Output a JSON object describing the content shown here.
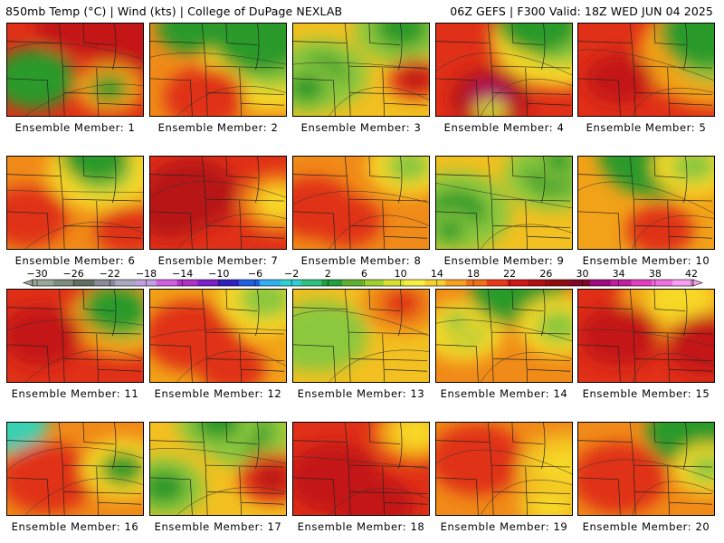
{
  "header": {
    "left": "850mb Temp (°C) | Wind (kts) | College of DuPage NEXLAB",
    "right": "06Z GEFS | F300 Valid: 18Z WED JUN 04 2025"
  },
  "member_label_prefix": "Ensemble Member: ",
  "members": [
    {
      "num": 1,
      "base": "#e03018",
      "cool": [
        "#f2a218",
        "#2a9a2a"
      ],
      "hot": [
        "#c41616"
      ],
      "blobs": [
        [
          0.95,
          0.05,
          0.45,
          0
        ],
        [
          0.5,
          0.0,
          0.3,
          0
        ],
        [
          0.2,
          0.6,
          0.3,
          2
        ],
        [
          0.75,
          0.7,
          0.25,
          1
        ]
      ]
    },
    {
      "num": 2,
      "base": "#f08a18",
      "cool": [
        "#f7d826",
        "#8cc83c",
        "#2a9a2a"
      ],
      "hot": [
        "#e03018"
      ],
      "blobs": [
        [
          0.9,
          0.4,
          0.5,
          1
        ],
        [
          0.8,
          0.15,
          0.35,
          2
        ],
        [
          0.3,
          0.05,
          0.25,
          2
        ],
        [
          0.4,
          0.8,
          0.3,
          0
        ]
      ]
    },
    {
      "num": 3,
      "base": "#f2c020",
      "cool": [
        "#8cc83c",
        "#2a9a2a"
      ],
      "hot": [
        "#e03018",
        "#b81414"
      ],
      "blobs": [
        [
          0.2,
          0.55,
          0.35,
          1
        ],
        [
          0.1,
          0.7,
          0.25,
          1
        ],
        [
          0.8,
          0.05,
          0.35,
          1
        ],
        [
          0.9,
          0.6,
          0.2,
          0
        ]
      ]
    },
    {
      "num": 4,
      "base": "#e03018",
      "cool": [
        "#f7d826",
        "#8cc83c",
        "#2a9a2a"
      ],
      "hot": [
        "#b81414",
        "#a0106a"
      ],
      "blobs": [
        [
          0.9,
          0.15,
          0.5,
          1
        ],
        [
          0.75,
          0.0,
          0.3,
          2
        ],
        [
          0.4,
          0.8,
          0.3,
          0
        ],
        [
          0.4,
          0.95,
          0.12,
          1
        ]
      ]
    },
    {
      "num": 5,
      "base": "#e03018",
      "cool": [
        "#f2a218",
        "#8cc83c",
        "#2a9a2a"
      ],
      "hot": [
        "#c41616"
      ],
      "blobs": [
        [
          1.0,
          0.3,
          0.55,
          1
        ],
        [
          0.95,
          0.1,
          0.35,
          2
        ],
        [
          0.3,
          0.6,
          0.25,
          0
        ]
      ]
    },
    {
      "num": 6,
      "base": "#f08a18",
      "cool": [
        "#f7d826",
        "#8cc83c",
        "#2a9a2a"
      ],
      "hot": [
        "#e03018"
      ],
      "blobs": [
        [
          0.7,
          0.15,
          0.4,
          1
        ],
        [
          0.65,
          0.0,
          0.25,
          2
        ],
        [
          0.15,
          0.65,
          0.3,
          0
        ],
        [
          0.9,
          0.8,
          0.25,
          0
        ]
      ]
    },
    {
      "num": 7,
      "base": "#e03018",
      "cool": [
        "#f08a18",
        "#f7d826"
      ],
      "hot": [
        "#b81414"
      ],
      "blobs": [
        [
          0.3,
          0.4,
          0.35,
          0
        ],
        [
          0.15,
          0.55,
          0.3,
          0
        ],
        [
          0.95,
          0.5,
          0.3,
          1
        ]
      ]
    },
    {
      "num": 8,
      "base": "#f08a18",
      "cool": [
        "#f7d826",
        "#8cc83c"
      ],
      "hot": [
        "#e03018"
      ],
      "blobs": [
        [
          0.15,
          0.55,
          0.3,
          0
        ],
        [
          0.4,
          0.7,
          0.25,
          0
        ],
        [
          0.85,
          0.1,
          0.3,
          1
        ]
      ]
    },
    {
      "num": 9,
      "base": "#f2c020",
      "cool": [
        "#8cc83c",
        "#2a9a2a"
      ],
      "hot": [
        "#e03018",
        "#b81414"
      ],
      "blobs": [
        [
          0.15,
          0.6,
          0.4,
          1
        ],
        [
          0.1,
          0.8,
          0.2,
          1
        ],
        [
          0.85,
          0.2,
          0.35,
          1
        ],
        [
          0.9,
          0.05,
          0.2,
          1
        ]
      ]
    },
    {
      "num": 10,
      "base": "#f2a218",
      "cool": [
        "#f7d826",
        "#8cc83c",
        "#2a9a2a"
      ],
      "hot": [
        "#e03018"
      ],
      "blobs": [
        [
          0.6,
          -0.05,
          0.45,
          2
        ],
        [
          0.85,
          0.1,
          0.3,
          1
        ],
        [
          0.6,
          0.8,
          0.25,
          0
        ]
      ]
    },
    {
      "num": 11,
      "base": "#e03018",
      "cool": [
        "#f2a218",
        "#8cc83c",
        "#2a9a2a"
      ],
      "hot": [
        "#c41616"
      ],
      "blobs": [
        [
          0.85,
          0.3,
          0.4,
          1
        ],
        [
          0.8,
          0.2,
          0.25,
          2
        ],
        [
          0.25,
          0.5,
          0.3,
          0
        ]
      ]
    },
    {
      "num": 12,
      "base": "#f2a218",
      "cool": [
        "#f7d826",
        "#8cc83c"
      ],
      "hot": [
        "#e03018"
      ],
      "blobs": [
        [
          0.3,
          0.5,
          0.35,
          0
        ],
        [
          0.6,
          0.85,
          0.25,
          0
        ],
        [
          0.85,
          0.1,
          0.35,
          1
        ]
      ]
    },
    {
      "num": 13,
      "base": "#f2c020",
      "cool": [
        "#8cc83c"
      ],
      "hot": [
        "#f08a18",
        "#e03018"
      ],
      "blobs": [
        [
          0.2,
          0.5,
          0.35,
          1
        ],
        [
          0.1,
          0.6,
          0.25,
          1
        ],
        [
          0.8,
          0.15,
          0.3,
          0
        ]
      ]
    },
    {
      "num": 14,
      "base": "#f08a18",
      "cool": [
        "#f7d826",
        "#8cc83c",
        "#2a9a2a"
      ],
      "hot": [
        "#e03018",
        "#b81414"
      ],
      "blobs": [
        [
          0.2,
          0.45,
          0.3,
          1
        ],
        [
          0.15,
          0.35,
          0.18,
          1
        ],
        [
          0.6,
          0.0,
          0.35,
          2
        ],
        [
          0.9,
          0.4,
          0.3,
          1
        ]
      ]
    },
    {
      "num": 15,
      "base": "#e03018",
      "cool": [
        "#f2a218",
        "#f7d826"
      ],
      "hot": [
        "#c41616"
      ],
      "blobs": [
        [
          0.75,
          0.1,
          0.45,
          1
        ],
        [
          0.95,
          0.6,
          0.3,
          0
        ],
        [
          0.3,
          0.5,
          0.3,
          0
        ]
      ]
    },
    {
      "num": 16,
      "base": "#f08a18",
      "cool": [
        "#f7d826",
        "#2a9a2a",
        "#3ad0b0"
      ],
      "hot": [
        "#e03018"
      ],
      "blobs": [
        [
          0.0,
          0.0,
          0.3,
          2
        ],
        [
          0.1,
          0.1,
          0.15,
          2
        ],
        [
          0.3,
          0.6,
          0.35,
          0
        ],
        [
          0.85,
          0.5,
          0.3,
          1
        ]
      ]
    },
    {
      "num": 17,
      "base": "#f2c020",
      "cool": [
        "#8cc83c",
        "#2a9a2a"
      ],
      "hot": [
        "#e03018",
        "#b81414"
      ],
      "blobs": [
        [
          0.1,
          0.7,
          0.3,
          1
        ],
        [
          0.7,
          0.1,
          0.35,
          1
        ],
        [
          0.5,
          0.0,
          0.3,
          1
        ],
        [
          0.9,
          0.6,
          0.25,
          0
        ]
      ]
    },
    {
      "num": 18,
      "base": "#e03018",
      "cool": [
        "#f2a218",
        "#f7d826"
      ],
      "hot": [
        "#c41616"
      ],
      "blobs": [
        [
          0.3,
          0.6,
          0.35,
          0
        ],
        [
          0.9,
          0.1,
          0.3,
          1
        ],
        [
          0.6,
          0.9,
          0.3,
          0
        ]
      ]
    },
    {
      "num": 19,
      "base": "#f08a18",
      "cool": [
        "#f2c020",
        "#f7d826"
      ],
      "hot": [
        "#e03018"
      ],
      "blobs": [
        [
          0.3,
          0.4,
          0.35,
          0
        ],
        [
          0.95,
          0.5,
          0.35,
          1
        ],
        [
          0.85,
          0.9,
          0.25,
          1
        ]
      ]
    },
    {
      "num": 20,
      "base": "#f08a18",
      "cool": [
        "#f7d826",
        "#8cc83c",
        "#2a9a2a"
      ],
      "hot": [
        "#e03018"
      ],
      "blobs": [
        [
          0.85,
          0.1,
          0.35,
          2
        ],
        [
          0.3,
          0.6,
          0.35,
          0
        ],
        [
          0.95,
          0.5,
          0.25,
          1
        ]
      ]
    }
  ],
  "colorbar": {
    "labels": [
      "−30",
      "−26",
      "−22",
      "−18",
      "−14",
      "−10",
      "−6",
      "−2",
      "2",
      "6",
      "10",
      "14",
      "18",
      "22",
      "26",
      "30",
      "34",
      "38",
      "42"
    ],
    "colors": [
      "#9aa89a",
      "#7e8c7e",
      "#626e62",
      "#8a8a9a",
      "#a8a8c0",
      "#c0a0e0",
      "#d060e0",
      "#b030c8",
      "#7a20c8",
      "#3020c0",
      "#2060e0",
      "#30b0f0",
      "#30d0d0",
      "#30c080",
      "#20a040",
      "#60b030",
      "#a0d030",
      "#d8e030",
      "#f8f040",
      "#f8d030",
      "#f8a020",
      "#f07018",
      "#e83818",
      "#d01818",
      "#b01010",
      "#900c0c",
      "#800828",
      "#a00a80",
      "#c020a0",
      "#e040c0",
      "#f070e0",
      "#f8a0f0"
    ]
  }
}
